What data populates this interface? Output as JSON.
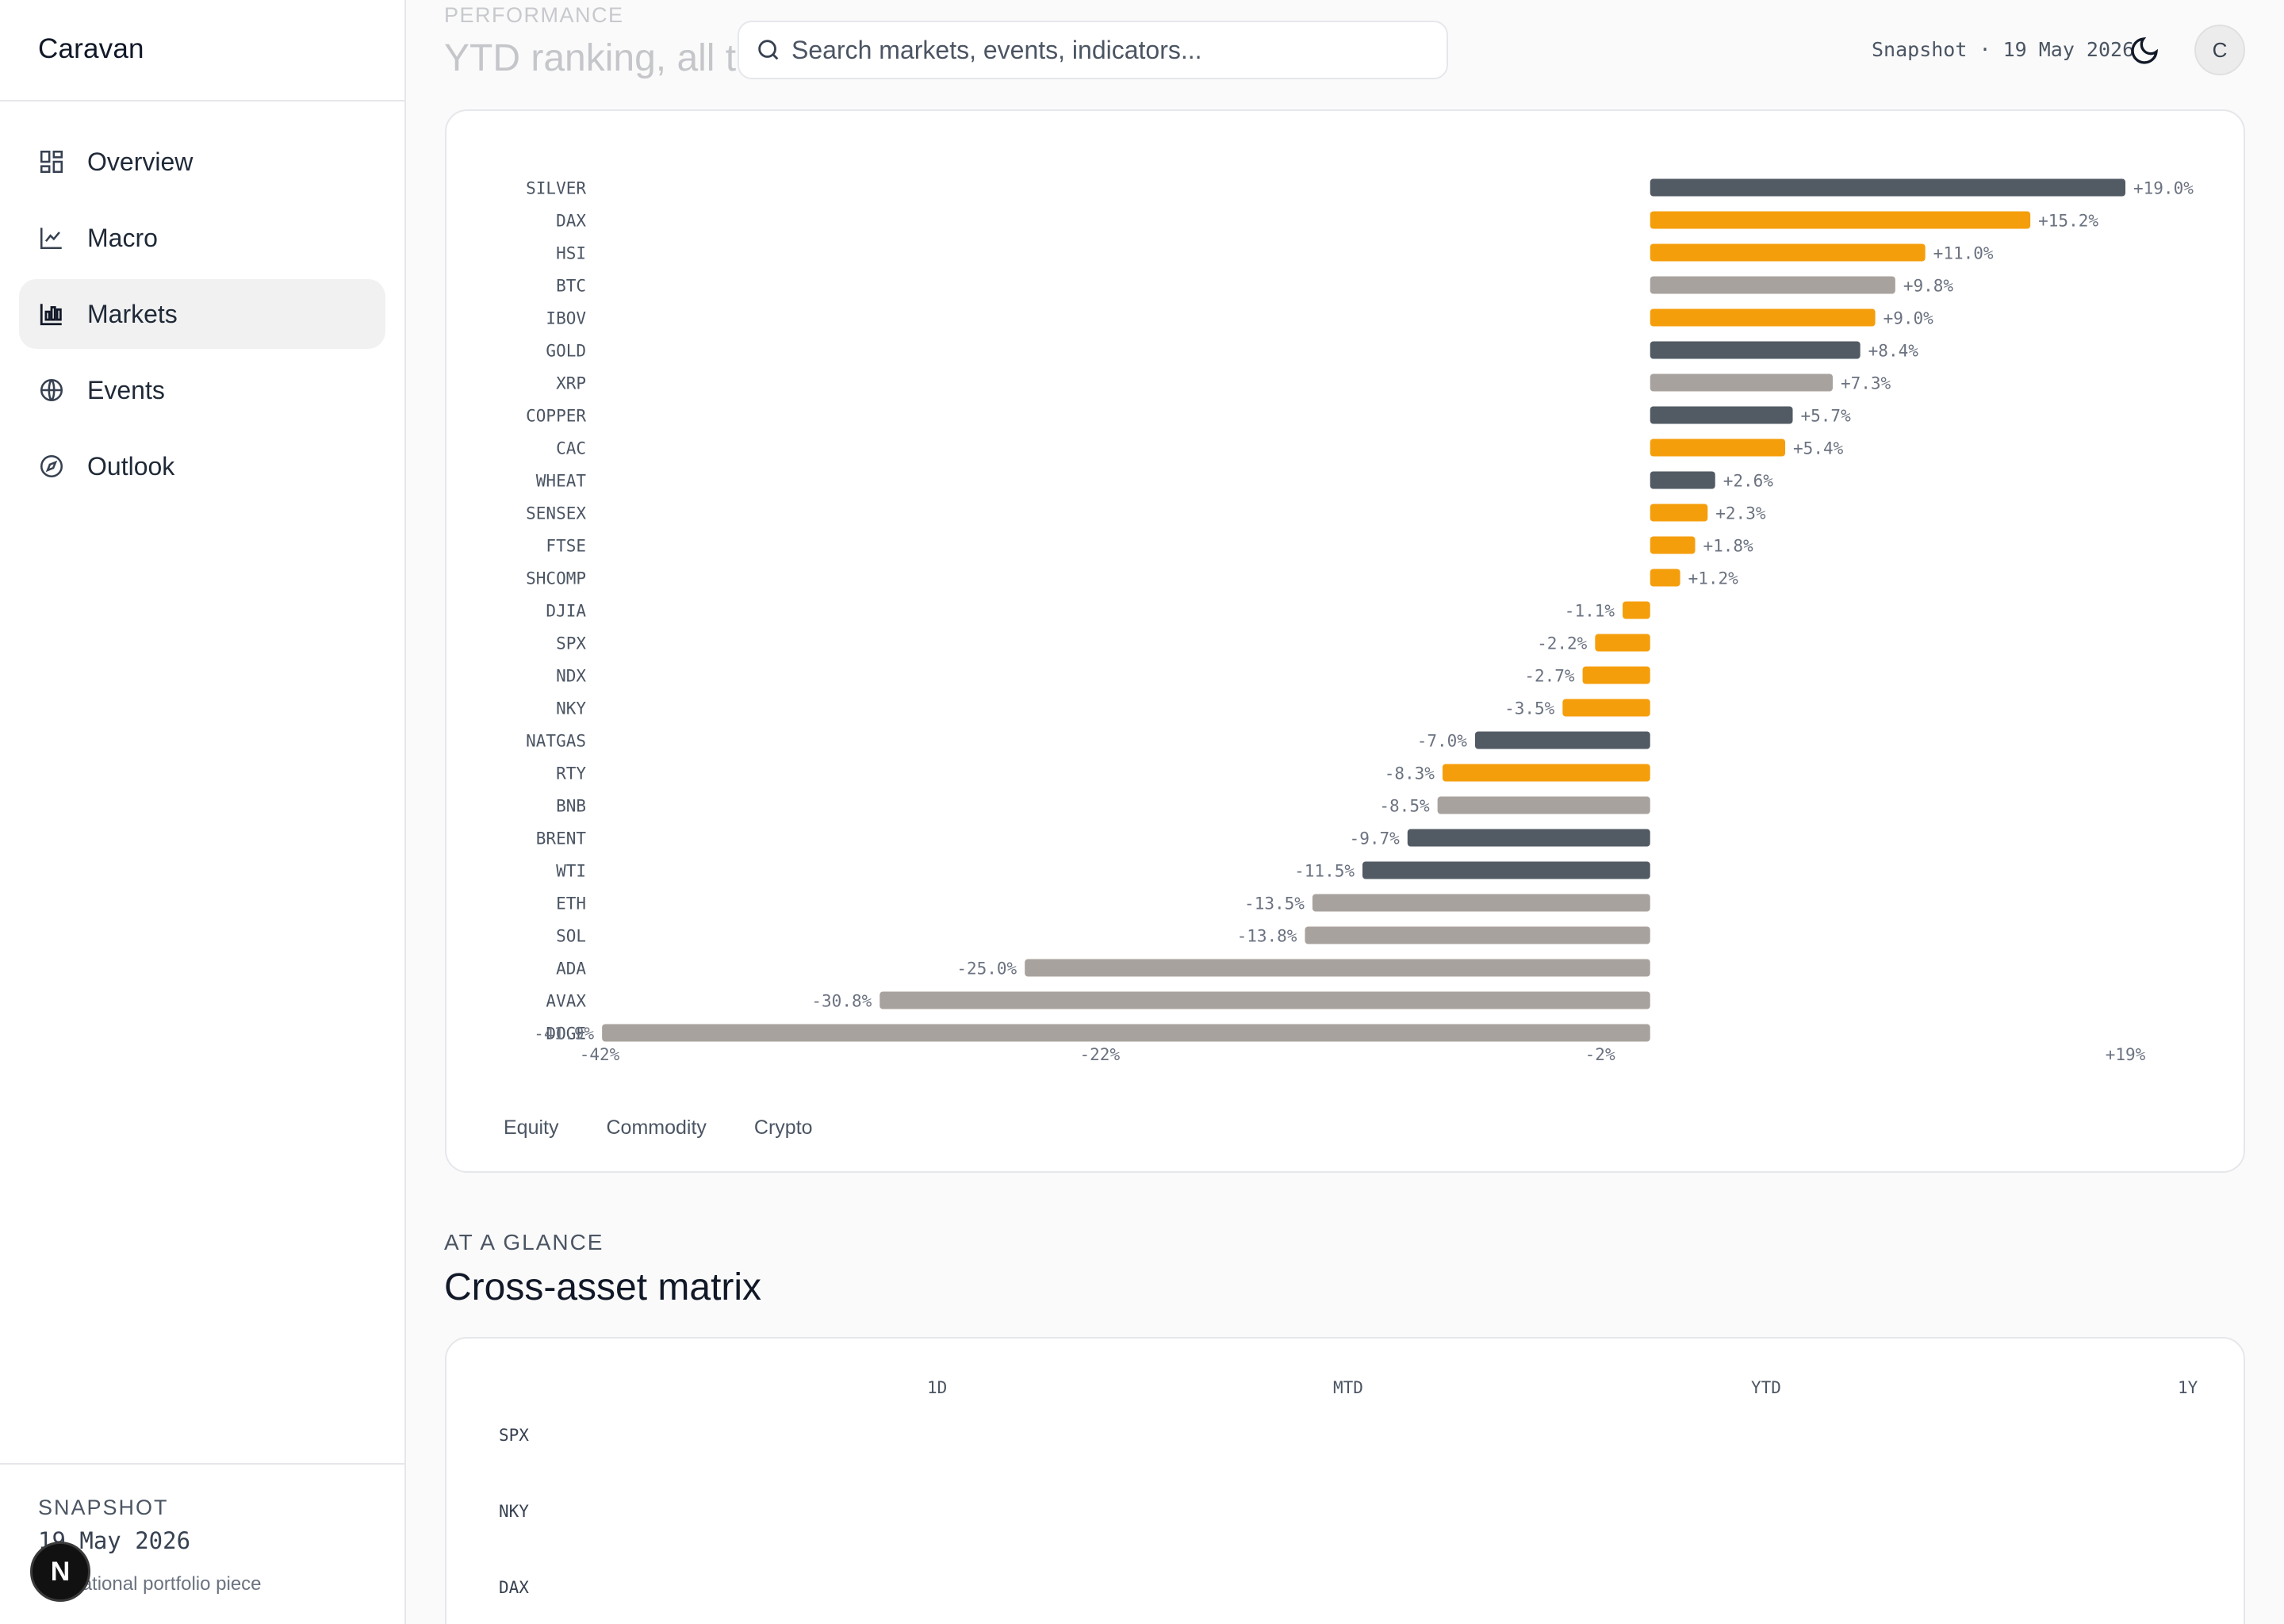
{
  "brand": "Caravan",
  "nav": [
    {
      "label": "Overview",
      "icon": "grid-icon"
    },
    {
      "label": "Macro",
      "icon": "line-chart-icon"
    },
    {
      "label": "Markets",
      "icon": "bar-chart-icon",
      "active": true
    },
    {
      "label": "Events",
      "icon": "globe-icon"
    },
    {
      "label": "Outlook",
      "icon": "compass-icon"
    }
  ],
  "sidebar_footer": {
    "label": "SNAPSHOT",
    "date": "19 May 2026",
    "note": "Educational portfolio piece",
    "badge": "N"
  },
  "header": {
    "section_label": "PERFORMANCE",
    "title": "YTD ranking, all tracked instruments",
    "search_placeholder": "Search markets, events, indicators...",
    "snapshot": "Snapshot · 19 May 2026",
    "avatar_initial": "C"
  },
  "colors": {
    "equity": "#f59e0b",
    "commodity": "#525a63",
    "crypto": "#a8a29e"
  },
  "chart_data": {
    "type": "bar",
    "orientation": "horizontal",
    "categories": [
      "SILVER",
      "DAX",
      "HSI",
      "BTC",
      "IBOV",
      "GOLD",
      "XRP",
      "COPPER",
      "CAC",
      "WHEAT",
      "SENSEX",
      "FTSE",
      "SHCOMP",
      "DJIA",
      "SPX",
      "NDX",
      "NKY",
      "NATGAS",
      "RTY",
      "BNB",
      "BRENT",
      "WTI",
      "ETH",
      "SOL",
      "ADA",
      "AVAX",
      "DOGE"
    ],
    "values": [
      19.0,
      15.2,
      11.0,
      9.8,
      9.0,
      8.4,
      7.3,
      5.7,
      5.4,
      2.6,
      2.3,
      1.8,
      1.2,
      -1.1,
      -2.2,
      -2.7,
      -3.5,
      -7.0,
      -8.3,
      -8.5,
      -9.7,
      -11.5,
      -13.5,
      -13.8,
      -25.0,
      -30.8,
      -41.9
    ],
    "asset_class": [
      "Commodity",
      "Equity",
      "Equity",
      "Crypto",
      "Equity",
      "Commodity",
      "Crypto",
      "Commodity",
      "Equity",
      "Commodity",
      "Equity",
      "Equity",
      "Equity",
      "Equity",
      "Equity",
      "Equity",
      "Equity",
      "Commodity",
      "Equity",
      "Crypto",
      "Commodity",
      "Commodity",
      "Crypto",
      "Crypto",
      "Crypto",
      "Crypto",
      "Crypto"
    ],
    "value_labels": [
      "+19.0%",
      "+15.2%",
      "+11.0%",
      "+9.8%",
      "+9.0%",
      "+8.4%",
      "+7.3%",
      "+5.7%",
      "+5.4%",
      "+2.6%",
      "+2.3%",
      "+1.8%",
      "+1.2%",
      "-1.1%",
      "-2.2%",
      "-2.7%",
      "-3.5%",
      "-7.0%",
      "-8.3%",
      "-8.5%",
      "-9.7%",
      "-11.5%",
      "-13.5%",
      "-13.8%",
      "-25.0%",
      "-30.8%",
      "-41.9%"
    ],
    "xlim": [
      -42,
      19
    ],
    "x_ticks": [
      "-42%",
      "-22%",
      "-2%",
      "+19%"
    ],
    "x_tick_values": [
      -42,
      -22,
      -2,
      19
    ],
    "legend": [
      "Equity",
      "Commodity",
      "Crypto"
    ]
  },
  "glance": {
    "label": "AT A GLANCE",
    "title": "Cross-asset matrix",
    "columns": [
      "1D",
      "MTD",
      "YTD",
      "1Y"
    ],
    "rows": [
      "SPX",
      "NKY",
      "DAX"
    ]
  }
}
